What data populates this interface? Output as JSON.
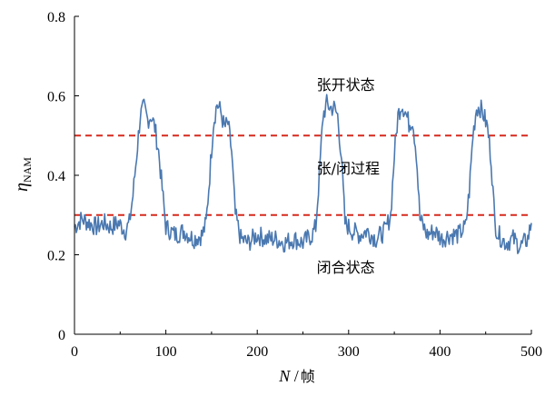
{
  "chart_data": {
    "type": "line",
    "xlim": [
      0,
      500
    ],
    "ylim": [
      0,
      0.8
    ],
    "x_ticks": [
      0,
      100,
      200,
      300,
      400,
      500
    ],
    "y_ticks": [
      0,
      0.2,
      0.4,
      0.6,
      0.8
    ],
    "x_tick_labels": [
      "0",
      "100",
      "200",
      "300",
      "400",
      "500"
    ],
    "y_tick_labels": [
      "0",
      "0.2",
      "0.4",
      "0.6",
      "0.8"
    ],
    "xlabel": {
      "var": "N",
      "sep": " /",
      "unit": "帧"
    },
    "ylabel": {
      "var": "η",
      "sub": "NAM"
    },
    "grid": false,
    "series_color": "#4a78b0",
    "thresholds": [
      {
        "y": 0.5,
        "color": "#d62a1e"
      },
      {
        "y": 0.3,
        "color": "#d62a1e"
      }
    ],
    "annotations": [
      {
        "text": "张开状态",
        "x": 265,
        "y": 0.615
      },
      {
        "text": "张/闭过程",
        "x": 265,
        "y": 0.405
      },
      {
        "text": "闭合状态",
        "x": 265,
        "y": 0.155
      }
    ],
    "series": [
      {
        "x": [
          0,
          8,
          16,
          24,
          32,
          40,
          48,
          56,
          60,
          64,
          68,
          72,
          76,
          80,
          84,
          88,
          92,
          100,
          110,
          120,
          130,
          140,
          144,
          148,
          152,
          156,
          160,
          164,
          168,
          172,
          176,
          182,
          190,
          200,
          210,
          220,
          230,
          240,
          250,
          260,
          264,
          268,
          272,
          276,
          280,
          284,
          288,
          292,
          296,
          304,
          312,
          320,
          330,
          340,
          346,
          350,
          354,
          358,
          362,
          366,
          370,
          374,
          378,
          386,
          394,
          402,
          410,
          420,
          428,
          432,
          436,
          440,
          444,
          448,
          452,
          456,
          460,
          464,
          472,
          480,
          488,
          496,
          500
        ],
        "y": [
          0.27,
          0.29,
          0.28,
          0.27,
          0.28,
          0.27,
          0.28,
          0.26,
          0.28,
          0.35,
          0.45,
          0.55,
          0.57,
          0.54,
          0.55,
          0.52,
          0.46,
          0.27,
          0.25,
          0.26,
          0.24,
          0.25,
          0.28,
          0.4,
          0.53,
          0.58,
          0.56,
          0.52,
          0.53,
          0.46,
          0.3,
          0.24,
          0.23,
          0.25,
          0.24,
          0.24,
          0.23,
          0.24,
          0.23,
          0.25,
          0.27,
          0.4,
          0.55,
          0.58,
          0.57,
          0.57,
          0.55,
          0.45,
          0.28,
          0.26,
          0.25,
          0.26,
          0.24,
          0.26,
          0.3,
          0.45,
          0.55,
          0.58,
          0.56,
          0.53,
          0.54,
          0.46,
          0.29,
          0.25,
          0.26,
          0.24,
          0.25,
          0.25,
          0.27,
          0.36,
          0.5,
          0.57,
          0.57,
          0.55,
          0.52,
          0.44,
          0.28,
          0.25,
          0.23,
          0.24,
          0.22,
          0.24,
          0.28
        ]
      }
    ]
  }
}
